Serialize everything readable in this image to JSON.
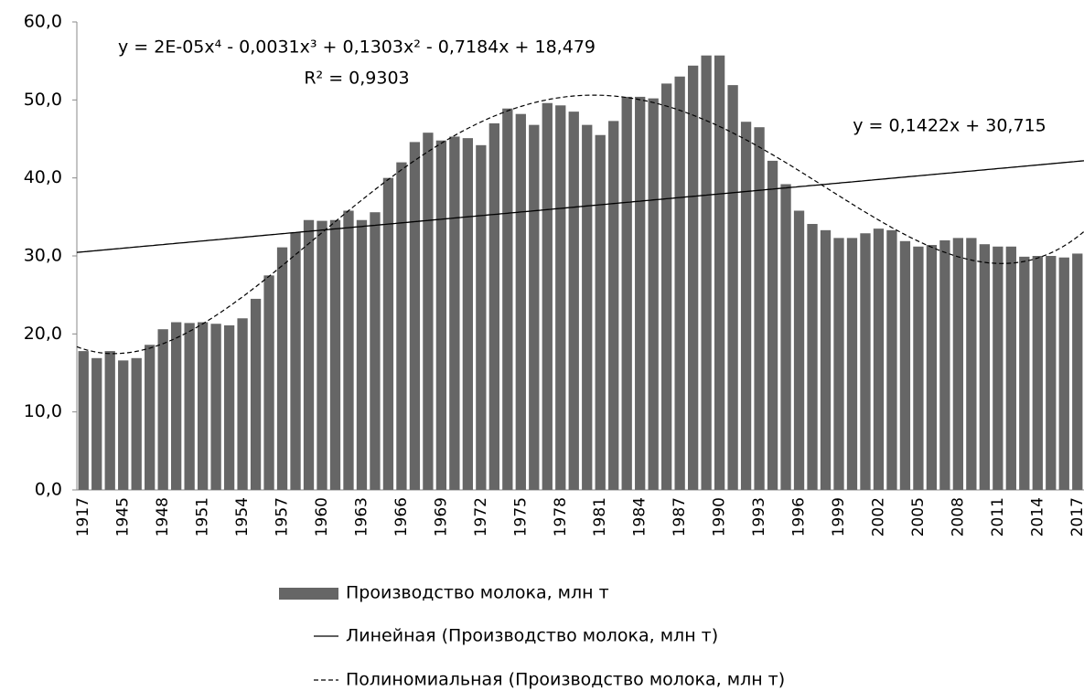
{
  "chart_data": {
    "type": "bar",
    "categories": [
      "1917",
      null,
      null,
      "1945",
      null,
      null,
      "1948",
      null,
      null,
      "1951",
      null,
      null,
      "1954",
      null,
      null,
      "1957",
      null,
      null,
      "1960",
      null,
      null,
      "1963",
      null,
      null,
      "1966",
      null,
      null,
      "1969",
      null,
      null,
      "1972",
      null,
      null,
      "1975",
      null,
      null,
      "1978",
      null,
      null,
      "1981",
      null,
      null,
      "1984",
      null,
      null,
      "1987",
      null,
      null,
      "1990",
      null,
      null,
      "1993",
      null,
      null,
      "1996",
      null,
      null,
      "1999",
      null,
      null,
      "2002",
      null,
      null,
      "2005",
      null,
      null,
      "2008",
      null,
      null,
      "2011",
      null,
      null,
      "2014",
      null,
      null,
      "2017"
    ],
    "series": [
      {
        "name": "Производство молока, млн т",
        "color": "#666666",
        "values": [
          17.8,
          16.9,
          17.8,
          16.6,
          16.9,
          18.6,
          20.6,
          21.5,
          21.4,
          21.5,
          21.3,
          21.1,
          22.0,
          24.5,
          27.5,
          31.1,
          33.0,
          34.6,
          34.5,
          34.6,
          35.8,
          34.6,
          35.6,
          40.0,
          42.0,
          44.6,
          45.8,
          44.8,
          45.3,
          45.1,
          44.2,
          47.0,
          48.9,
          48.2,
          46.8,
          49.6,
          49.3,
          48.5,
          46.8,
          45.5,
          47.3,
          50.4,
          50.4,
          50.2,
          52.1,
          53.0,
          54.4,
          55.7,
          55.7,
          51.9,
          47.2,
          46.5,
          42.2,
          39.2,
          35.8,
          34.1,
          33.3,
          32.3,
          32.3,
          32.9,
          33.5,
          33.3,
          31.9,
          31.2,
          31.4,
          32.0,
          32.3,
          32.3,
          31.5,
          31.2,
          31.2,
          29.9,
          30.0,
          30.0,
          29.8,
          30.3
        ]
      }
    ],
    "trendlines": [
      {
        "name": "Линейная (Производство молока, млн т)",
        "kind": "linear",
        "equation": "y = 0,1422x + 30,715",
        "dash": false
      },
      {
        "name": "Полиномиальная (Производство молока, млн т)",
        "kind": "polynomial",
        "order": 4,
        "equation": "y = 2E-05x⁴ - 0,0031x³ + 0,1303x² - 0,7184x + 18,479",
        "r_squared": "R² = 0,9303",
        "dash": true
      }
    ],
    "ylim": [
      0,
      60
    ],
    "yticks": [
      {
        "value": 0,
        "label": "0,0"
      },
      {
        "value": 10,
        "label": "10,0"
      },
      {
        "value": 20,
        "label": "20,0"
      },
      {
        "value": 30,
        "label": "30,0"
      },
      {
        "value": 40,
        "label": "40,0"
      },
      {
        "value": 50,
        "label": "50,0"
      },
      {
        "value": 60,
        "label": "60,0"
      }
    ],
    "grid": false
  }
}
